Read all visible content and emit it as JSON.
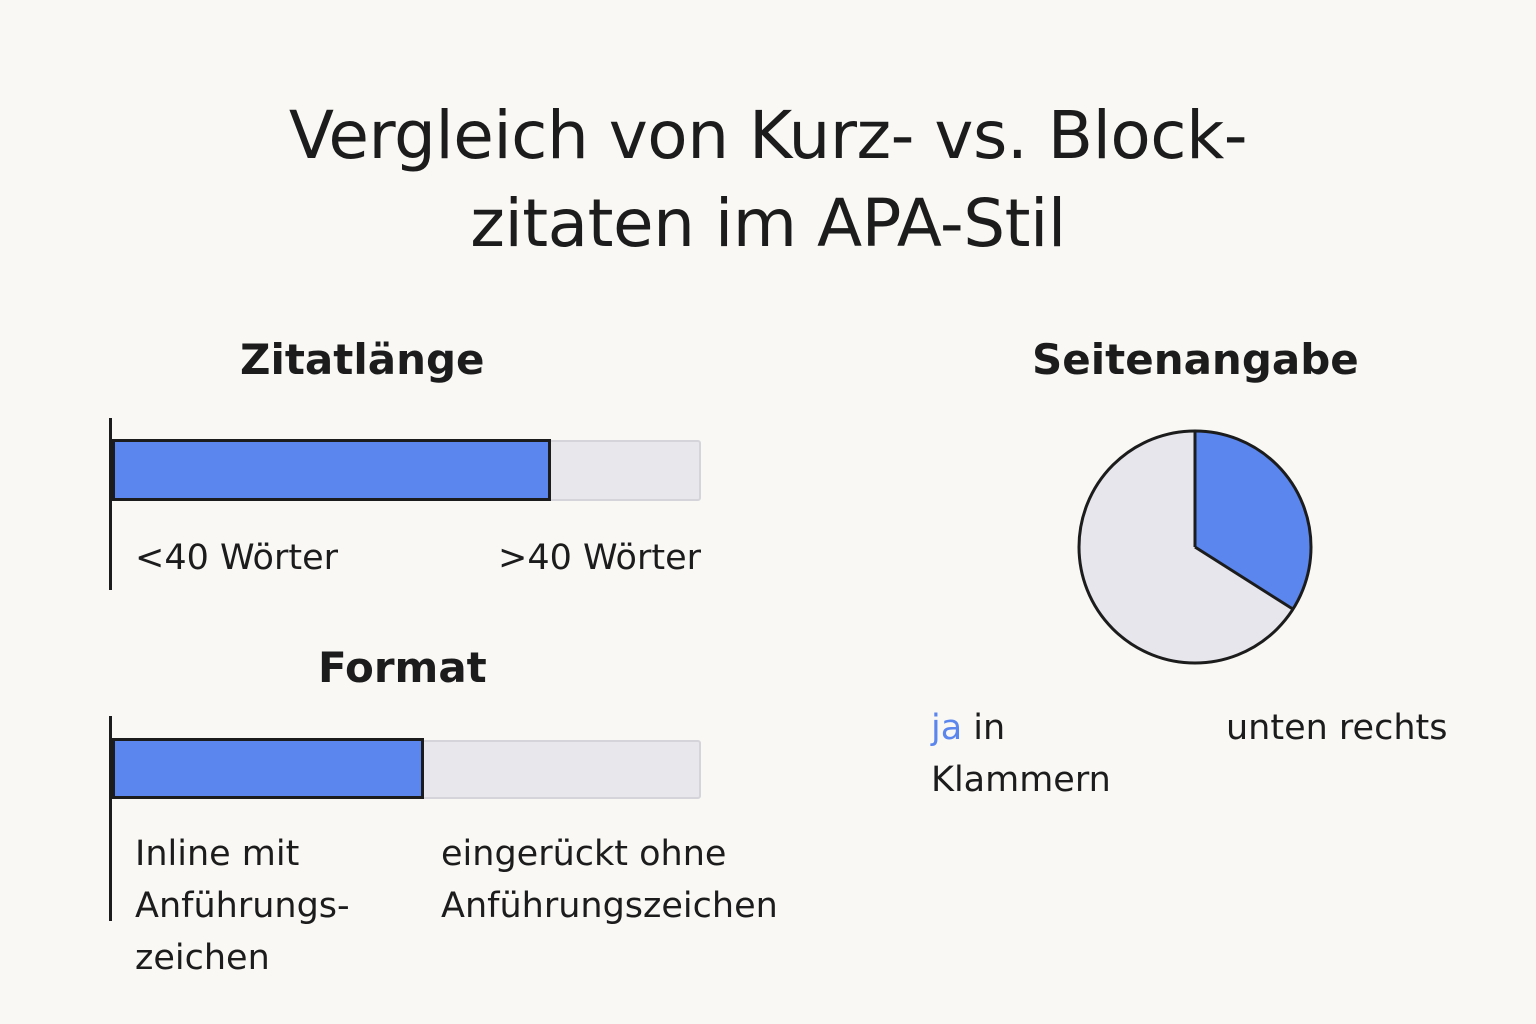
{
  "title": {
    "line1": "Vergleich von Kurz- vs. Block-",
    "line2": "zitaten im APA-Stil"
  },
  "colors": {
    "accent": "#5a86ee",
    "track": "#e7e7ec",
    "outline": "#1c1c1c",
    "pie_rest": "#e6e6ec"
  },
  "chart_data": [
    {
      "type": "bar",
      "title": "Zitatlänge",
      "orientation": "horizontal",
      "filled_fraction": 0.745,
      "labels": [
        "<40 Wörter",
        ">40 Wörter"
      ]
    },
    {
      "type": "bar",
      "title": "Format",
      "orientation": "horizontal",
      "filled_fraction": 0.53,
      "labels": [
        "Inline mit\nAnführungs-\nzeichen",
        "eingerückt ohne\nAnführungszeichen"
      ]
    },
    {
      "type": "pie",
      "title": "Seitenangabe",
      "slices": [
        {
          "label": "unten rechts",
          "fraction": 0.34,
          "color": "#5a86ee"
        },
        {
          "label": "ja in Klammern",
          "fraction": 0.66,
          "color": "#e6e6ec"
        }
      ],
      "labels": {
        "left_highlight": "ja",
        "left_rest": " in\nKlammern",
        "right": "unten rechts"
      }
    }
  ]
}
